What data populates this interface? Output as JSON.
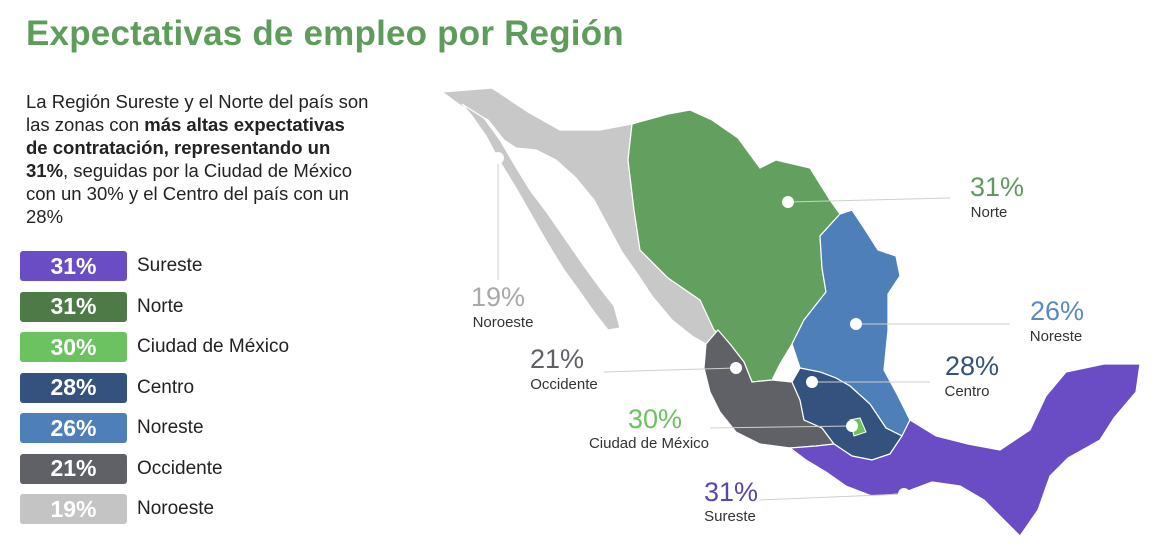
{
  "title": "Expectativas de empleo por Región",
  "description": {
    "p1": "La Región Sureste y el Norte del país son las zonas con ",
    "bold": "más altas expectativas de contratación, representando un 31%",
    "p2": ", seguidas por la Ciudad de México con un 30% y el Centro del país con un 28%"
  },
  "legend": [
    {
      "value": "31%",
      "label": "Sureste",
      "color": "#6a4dc4"
    },
    {
      "value": "31%",
      "label": "Norte",
      "color": "#4d7a47"
    },
    {
      "value": "30%",
      "label": "Ciudad de México",
      "color": "#6cc160"
    },
    {
      "value": "28%",
      "label": "Centro",
      "color": "#35527e"
    },
    {
      "value": "26%",
      "label": "Noreste",
      "color": "#4f7fb8"
    },
    {
      "value": "21%",
      "label": "Occidente",
      "color": "#5f6166"
    },
    {
      "value": "19%",
      "label": "Noroeste",
      "color": "#c4c4c4"
    }
  ],
  "map": {
    "regions": {
      "noroeste": {
        "value": "19%",
        "name": "Noroeste",
        "color": "#c8c8c8",
        "text_color": "#a9a9a9"
      },
      "norte": {
        "value": "31%",
        "name": "Norte",
        "color": "#63a060",
        "text_color": "#5e9c5b"
      },
      "noreste": {
        "value": "26%",
        "name": "Noreste",
        "color": "#4f7fb8",
        "text_color": "#5a8ac4"
      },
      "centro": {
        "value": "28%",
        "name": "Centro",
        "color": "#35527e",
        "text_color": "#35527e"
      },
      "occidente": {
        "value": "21%",
        "name": "Occidente",
        "color": "#5f6166",
        "text_color": "#5f6166"
      },
      "cdmx": {
        "value": "30%",
        "name": "Ciudad de México",
        "color": "#6cc160",
        "text_color": "#6cc160"
      },
      "sureste": {
        "value": "31%",
        "name": "Sureste",
        "color": "#6a4dc4",
        "text_color": "#5b45a8"
      }
    }
  }
}
